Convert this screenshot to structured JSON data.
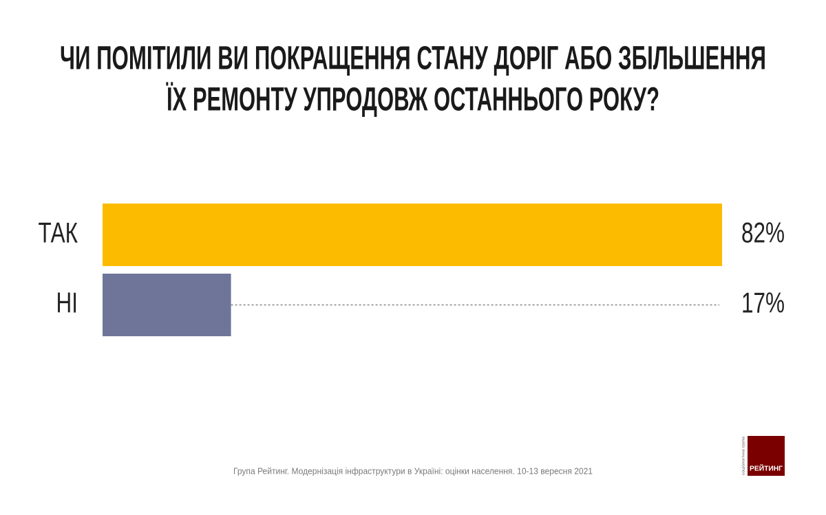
{
  "chart_data": {
    "type": "bar",
    "orientation": "horizontal",
    "title": [
      "ЧИ ПОМІТИЛИ ВИ ПОКРАЩЕННЯ СТАНУ ДОРІГ АБО ЗБІЛЬШЕННЯ",
      "ЇХ РЕМОНТУ УПРОДОВЖ ОСТАННЬОГО РОКУ?"
    ],
    "categories": [
      "ТАК",
      "НІ"
    ],
    "values": [
      82,
      17
    ],
    "value_labels": [
      "82%",
      "17%"
    ],
    "colors": [
      "#fdbb00",
      "#6e7598"
    ],
    "source": "Група Рейтинг. Модернізація інфраструктури в Україні: оцінки населення. 10-13 вересня 2021"
  },
  "logo": {
    "name": "РЕЙТИНГ",
    "tagline": "соціологічна група"
  }
}
